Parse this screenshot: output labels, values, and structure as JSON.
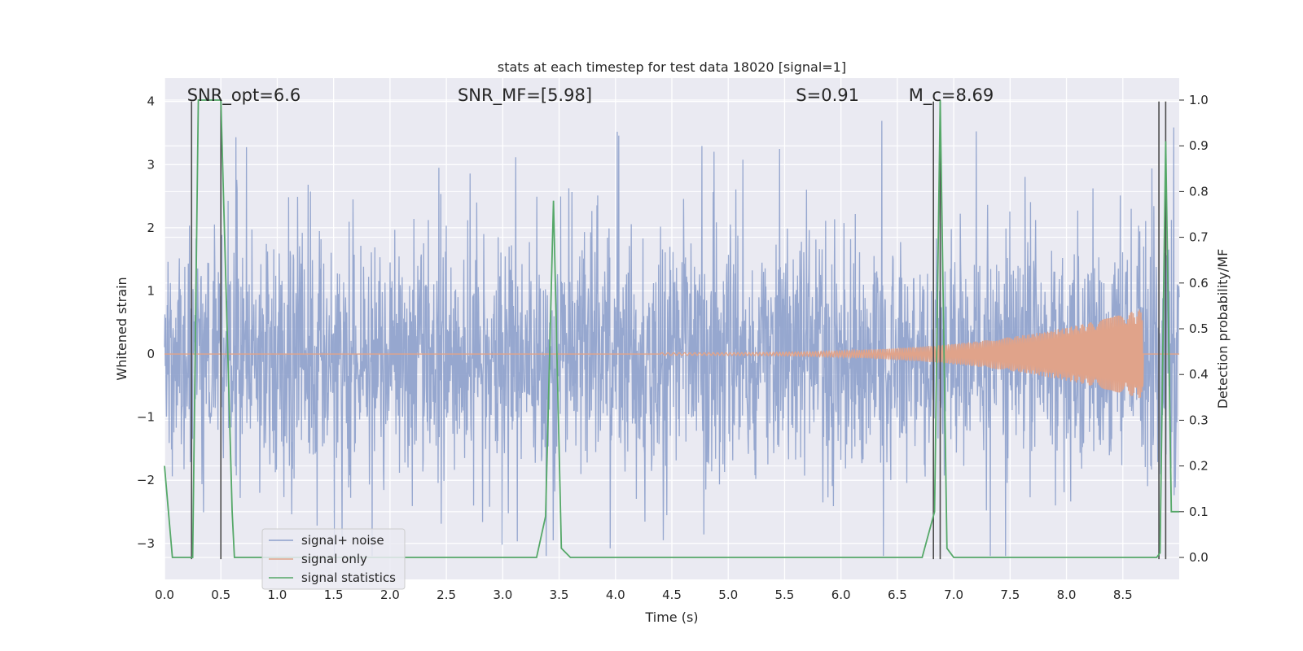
{
  "chart_data": {
    "type": "line",
    "title": "stats at each timestep for test data 18020 [signal=1]",
    "xlabel": "Time (s)",
    "ylabel_left": "Whitened strain",
    "ylabel_right": "Detection probability/MF",
    "xlim": [
      0,
      9.0
    ],
    "ylim_left": [
      -3.57,
      4.37
    ],
    "ylim_right": [
      -0.048,
      1.048
    ],
    "x_ticks": [
      "0.0",
      "0.5",
      "1.0",
      "1.5",
      "2.0",
      "2.5",
      "3.0",
      "3.5",
      "4.0",
      "4.5",
      "5.0",
      "5.5",
      "6.0",
      "6.5",
      "7.0",
      "7.5",
      "8.0",
      "8.5"
    ],
    "y_ticks_left": [
      "−3",
      "−2",
      "−1",
      "0",
      "1",
      "2",
      "3",
      "4"
    ],
    "y_ticks_right": [
      "0.0",
      "0.1",
      "0.2",
      "0.3",
      "0.4",
      "0.5",
      "0.6",
      "0.7",
      "0.8",
      "0.9",
      "1.0"
    ],
    "grid": true,
    "legend_position": "lower-left",
    "annotations": [
      {
        "text": "SNR_opt=6.6",
        "x": 0.2
      },
      {
        "text": "SNR_MF=[5.98]",
        "x": 2.6
      },
      {
        "text": "S=0.91",
        "x": 5.6
      },
      {
        "text": "M_c=8.69",
        "x": 6.6
      }
    ],
    "series": [
      {
        "name": "signal+ noise",
        "color": "#8da0cb",
        "axis": "left",
        "kind": "noise",
        "approx_envelope": {
          "typical_min": -1.8,
          "typical_max": 1.8,
          "peak_max": 4.0,
          "peak_min": -3.2
        }
      },
      {
        "name": "signal only",
        "color": "#e0a38a",
        "axis": "left",
        "kind": "chirp",
        "approx_envelope": {
          "start_time": 4.4,
          "end_time": 8.68,
          "peak_amplitude": 0.7
        }
      },
      {
        "name": "signal statistics",
        "color": "#55a868",
        "axis": "right",
        "x": [
          0.0,
          0.07,
          0.25,
          0.3,
          0.5,
          0.6,
          0.62,
          1.0,
          2.0,
          3.0,
          3.3,
          3.38,
          3.45,
          3.52,
          3.6,
          4.0,
          5.0,
          6.0,
          6.72,
          6.83,
          6.88,
          6.94,
          7.0,
          8.0,
          8.8,
          8.83,
          8.88,
          8.93,
          9.0
        ],
        "y": [
          0.2,
          0.0,
          0.0,
          1.0,
          1.0,
          0.1,
          0.0,
          0.0,
          0.0,
          0.0,
          0.0,
          0.09,
          0.78,
          0.02,
          0.0,
          0.0,
          0.0,
          0.0,
          0.0,
          0.1,
          1.0,
          0.02,
          0.0,
          0.0,
          0.0,
          0.01,
          0.91,
          0.1,
          0.1
        ]
      }
    ],
    "vertical_lines": [
      0.24,
      0.5,
      6.82,
      6.88,
      8.82,
      8.88
    ],
    "vertical_line_color": "#4d4d4d"
  }
}
